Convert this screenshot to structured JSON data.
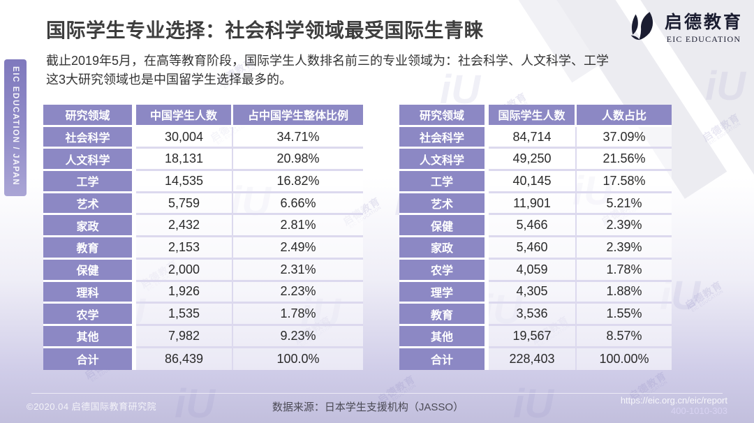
{
  "slide": {
    "title": "国际学生专业选择：社会科学领域最受国际生青睐",
    "intro_line1": "截止2019年5月，在高等教育阶段，国际学生人数排名前三的专业领域为：社会科学、人文科学、工学",
    "intro_line2": "这3大研究领域也是中国留学生选择最多的。"
  },
  "sidebar": {
    "vertical_label": "EIC EDUCATION / JAPAN"
  },
  "logo": {
    "name_zh": "启德教育",
    "name_en": "EIC EDUCATION"
  },
  "tables": [
    {
      "headers": [
        "研究领域",
        "中国学生人数",
        "占中国学生整体比例"
      ],
      "rows": [
        [
          "社会科学",
          "30,004",
          "34.71%"
        ],
        [
          "人文科学",
          "18,131",
          "20.98%"
        ],
        [
          "工学",
          "14,535",
          "16.82%"
        ],
        [
          "艺术",
          "5,759",
          "6.66%"
        ],
        [
          "家政",
          "2,432",
          "2.81%"
        ],
        [
          "教育",
          "2,153",
          "2.49%"
        ],
        [
          "保健",
          "2,000",
          "2.31%"
        ],
        [
          "理科",
          "1,926",
          "2.23%"
        ],
        [
          "农学",
          "1,535",
          "1.78%"
        ],
        [
          "其他",
          "7,982",
          "9.23%"
        ],
        [
          "合计",
          "86,439",
          "100.0%"
        ]
      ]
    },
    {
      "headers": [
        "研究领域",
        "国际学生人数",
        "人数占比"
      ],
      "rows": [
        [
          "社会科学",
          "84,714",
          "37.09%"
        ],
        [
          "人文科学",
          "49,250",
          "21.56%"
        ],
        [
          "工学",
          "40,145",
          "17.58%"
        ],
        [
          "艺术",
          "11,901",
          "5.21%"
        ],
        [
          "保健",
          "5,466",
          "2.39%"
        ],
        [
          "家政",
          "5,460",
          "2.39%"
        ],
        [
          "农学",
          "4,059",
          "1.78%"
        ],
        [
          "理学",
          "4,305",
          "1.88%"
        ],
        [
          "教育",
          "3,536",
          "1.55%"
        ],
        [
          "其他",
          "19,567",
          "8.57%"
        ],
        [
          "合计",
          "228,403",
          "100.00%"
        ]
      ]
    }
  ],
  "footer": {
    "copyright": "©2020.04 启德国际教育研究院",
    "source": "数据来源：日本学生支援机构（JASSO）",
    "url": "https://eic.org.cn/eic/report",
    "phone": "400-1010-303"
  },
  "watermark": {
    "brand": "启德教育",
    "brand_en": "EIC EDUCATION",
    "glyph": "iU"
  },
  "colors": {
    "accent_purple": "#8c88c4",
    "separator": "#dcd9ee",
    "logo_navy": "#1b1d31",
    "title_text": "#3d3d3d"
  }
}
